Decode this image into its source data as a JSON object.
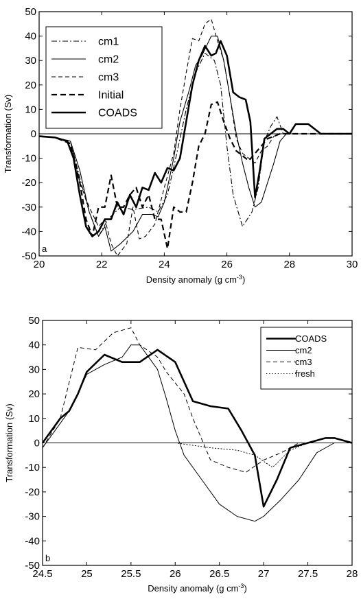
{
  "chart_data": [
    {
      "type": "line",
      "panel_label": "a",
      "xlabel": "Density anomaly (g cm",
      "xlabel_sup": "-3",
      "xlabel_end": ")",
      "ylabel": "Transformation (Sv)",
      "xlim": [
        20,
        30
      ],
      "ylim": [
        -50,
        50
      ],
      "xticks": [
        20,
        22,
        24,
        26,
        28,
        30
      ],
      "yticks": [
        -50,
        -40,
        -30,
        -20,
        -10,
        0,
        10,
        20,
        30,
        40,
        50
      ],
      "grid": false,
      "zero_line": true,
      "legend_position": "top-left",
      "legend_font_size": 16,
      "series": [
        {
          "name": "cm1",
          "style": "dashdot",
          "width": 1.1,
          "x": [
            20,
            20.5,
            21,
            21.3,
            21.6,
            21.9,
            22.2,
            22.6,
            23,
            23.5,
            23.8,
            24.1,
            24.4,
            24.7,
            25,
            25.3,
            25.6,
            25.8,
            26,
            26.2,
            26.5,
            26.8,
            27,
            27.2,
            27.4,
            27.6,
            27.8,
            28,
            30
          ],
          "y": [
            -1,
            -1.5,
            -3,
            -18,
            -32,
            -42,
            -35,
            -30,
            -31,
            -30,
            -32,
            -25,
            -8,
            10,
            25,
            33,
            30,
            20,
            -5,
            -25,
            -38,
            -32,
            -22,
            -3,
            3,
            7,
            0,
            0,
            0
          ]
        },
        {
          "name": "cm2",
          "style": "solid",
          "width": 1.1,
          "x": [
            20,
            20.5,
            21,
            21.3,
            21.6,
            21.9,
            22.1,
            22.3,
            22.6,
            23,
            23.3,
            23.6,
            23.8,
            24,
            24.3,
            24.5,
            24.8,
            25,
            25.2,
            25.5,
            25.7,
            25.9,
            26.1,
            26.3,
            26.5,
            26.7,
            26.9,
            27.1,
            27.3,
            27.5,
            27.7,
            27.9,
            28,
            30
          ],
          "y": [
            -1,
            -1.5,
            -3,
            -15,
            -32,
            -42,
            -38,
            -48,
            -45,
            -40,
            -33,
            -33,
            -34,
            -28,
            -10,
            5,
            18,
            28,
            32,
            40,
            40,
            30,
            15,
            0,
            -12,
            -22,
            -30,
            -28,
            -20,
            -12,
            -3,
            0,
            0,
            0
          ]
        },
        {
          "name": "cm3",
          "style": "dashed",
          "width": 1.1,
          "x": [
            20,
            20.5,
            21,
            21.3,
            21.6,
            21.9,
            22.1,
            22.3,
            22.5,
            22.8,
            23,
            23.2,
            23.4,
            23.7,
            24,
            24.3,
            24.5,
            24.7,
            24.9,
            25.1,
            25.3,
            25.5,
            25.7,
            25.9,
            26.1,
            26.3,
            26.5,
            26.7,
            26.9,
            27.1,
            27.3,
            27.5,
            27.7,
            28,
            30
          ],
          "y": [
            -1,
            -1.5,
            -3,
            -20,
            -30,
            -38,
            -35,
            -45,
            -50,
            -45,
            -30,
            -43,
            -42,
            -37,
            -22,
            -8,
            10,
            25,
            39,
            38,
            45,
            47,
            38,
            30,
            15,
            -2,
            -8,
            -10,
            -12,
            -7,
            -5,
            -1,
            0,
            0,
            0
          ]
        },
        {
          "name": "Initial",
          "style": "dashed-bold",
          "width": 2.2,
          "x": [
            20,
            20.5,
            21,
            21.3,
            21.5,
            21.7,
            21.9,
            22.1,
            22.3,
            22.5,
            22.7,
            22.9,
            23.1,
            23.3,
            23.5,
            23.7,
            23.9,
            24.1,
            24.3,
            24.5,
            24.7,
            24.9,
            25.1,
            25.3,
            25.5,
            25.7,
            25.9,
            26.1,
            26.3,
            26.5,
            26.7,
            26.9,
            27.1,
            27.3,
            27.5,
            27.7,
            28,
            30
          ],
          "y": [
            -1,
            -1.5,
            -4,
            -20,
            -35,
            -42,
            -30,
            -30,
            -17,
            -30,
            -30,
            -25,
            -22,
            -30,
            -25,
            -35,
            -35,
            -47,
            -30,
            -32,
            -32,
            -20,
            -5,
            0,
            12,
            13,
            5,
            -2,
            -7,
            -9,
            -11,
            -8,
            -5,
            -2,
            -1,
            0,
            0,
            0
          ]
        },
        {
          "name": "COADS",
          "style": "solid-bold",
          "width": 2.6,
          "x": [
            20,
            20.5,
            20.9,
            21.1,
            21.3,
            21.5,
            21.7,
            21.9,
            22.1,
            22.3,
            22.5,
            22.7,
            22.9,
            23.1,
            23.3,
            23.5,
            23.7,
            23.9,
            24.1,
            24.3,
            24.5,
            24.7,
            24.9,
            25.1,
            25.3,
            25.5,
            25.65,
            25.8,
            26,
            26.2,
            26.4,
            26.6,
            26.75,
            26.9,
            27.05,
            27.2,
            27.4,
            27.6,
            27.8,
            28,
            28.2,
            28.4,
            28.6,
            28.8,
            29,
            29.2,
            30
          ],
          "y": [
            -1,
            -1.5,
            -3,
            -10,
            -25,
            -38,
            -42,
            -40,
            -35,
            -35,
            -28,
            -33,
            -25,
            -30,
            -22,
            -23,
            -16,
            -20,
            -14,
            -15,
            -10,
            5,
            20,
            30,
            36,
            32,
            33,
            38,
            32,
            17,
            15,
            14,
            5,
            -26,
            -15,
            -2,
            0,
            2,
            2,
            0,
            4,
            4,
            4,
            2,
            0,
            0,
            0
          ]
        }
      ]
    },
    {
      "type": "line",
      "panel_label": "b",
      "xlabel": "Density anomaly (g cm",
      "xlabel_sup": "-3",
      "xlabel_end": ")",
      "ylabel": "Transformation (Sv)",
      "xlim": [
        24.5,
        28
      ],
      "ylim": [
        -50,
        50
      ],
      "xticks": [
        24.5,
        25,
        25.5,
        26,
        26.5,
        27,
        27.5,
        28
      ],
      "yticks": [
        -50,
        -40,
        -30,
        -20,
        -10,
        0,
        10,
        20,
        30,
        40,
        50
      ],
      "grid": false,
      "zero_line": true,
      "legend_position": "top-right",
      "legend_font_size": 13,
      "series": [
        {
          "name": "COADS",
          "style": "solid-bold",
          "width": 2.6,
          "x": [
            24.5,
            24.6,
            24.7,
            24.8,
            24.9,
            25,
            25.2,
            25.4,
            25.6,
            25.8,
            26,
            26.2,
            26.4,
            26.6,
            26.75,
            26.9,
            27,
            27.15,
            27.3,
            27.5,
            27.7,
            27.8,
            28
          ],
          "y": [
            0,
            5,
            10,
            13,
            20,
            29,
            36,
            33,
            33,
            38,
            33,
            17,
            15,
            14,
            5,
            -5,
            -26,
            -15,
            -2,
            0,
            2,
            2,
            0
          ]
        },
        {
          "name": "cm2",
          "style": "solid",
          "width": 1.0,
          "x": [
            24.5,
            24.6,
            24.7,
            24.8,
            24.9,
            25,
            25.2,
            25.4,
            25.5,
            25.6,
            25.8,
            25.9,
            26,
            26.1,
            26.3,
            26.5,
            26.7,
            26.9,
            27,
            27.2,
            27.4,
            27.6,
            27.8,
            28
          ],
          "y": [
            -2,
            3,
            8,
            13,
            20,
            28,
            32,
            35,
            40,
            40,
            30,
            18,
            5,
            -5,
            -15,
            -25,
            -30,
            -32,
            -30,
            -23,
            -15,
            -4,
            0,
            0
          ]
        },
        {
          "name": "cm3",
          "style": "dashed",
          "width": 1.0,
          "x": [
            24.5,
            24.7,
            24.9,
            25.1,
            25.3,
            25.5,
            25.6,
            25.8,
            25.9,
            26.1,
            26.2,
            26.4,
            26.6,
            26.8,
            27,
            27.2,
            27.4,
            27.6,
            27.8,
            28
          ],
          "y": [
            -2,
            10,
            39,
            38,
            45,
            47,
            40,
            35,
            29,
            20,
            10,
            -7,
            -10,
            -12,
            -7,
            -4,
            0,
            0,
            0,
            0
          ]
        },
        {
          "name": "fresh",
          "style": "dotted",
          "width": 1.0,
          "x": [
            24.5,
            25,
            25.5,
            26,
            26.4,
            26.7,
            26.9,
            27.1,
            27.3,
            27.5,
            27.7,
            28
          ],
          "y": [
            0,
            0,
            0,
            0,
            -2,
            -3,
            -5,
            -10,
            -3,
            0,
            0,
            0
          ]
        }
      ]
    }
  ]
}
